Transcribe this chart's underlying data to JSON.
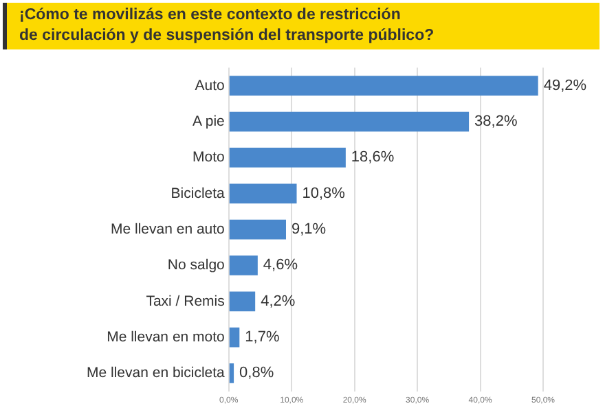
{
  "chart_data": {
    "type": "bar",
    "orientation": "horizontal",
    "title": "¡Cómo te movilizás en este contexto de restricción\nde circulación y de suspensión del transporte público?",
    "categories": [
      "Auto",
      "A pie",
      "Moto",
      "Bicicleta",
      "Me llevan en auto",
      "No salgo",
      "Taxi / Remis",
      "Me llevan en moto",
      "Me llevan en bicicleta"
    ],
    "values": [
      49.2,
      38.2,
      18.6,
      10.8,
      9.1,
      4.6,
      4.2,
      1.7,
      0.8
    ],
    "value_labels": [
      "49,2%",
      "38,2%",
      "18,6%",
      "10,8%",
      "9,1%",
      "4,6%",
      "4,2%",
      "1,7%",
      "0,8%"
    ],
    "color": "#4a88cc",
    "xlim": [
      0,
      50
    ],
    "xticks": [
      {
        "value": 0,
        "label": "0,0%"
      },
      {
        "value": 10,
        "label": "10,0%"
      },
      {
        "value": 20,
        "label": "20,0%"
      },
      {
        "value": 30,
        "label": "30,0%"
      },
      {
        "value": 40,
        "label": "40,0%"
      },
      {
        "value": 50,
        "label": "50,0%"
      }
    ],
    "grid": "x"
  }
}
